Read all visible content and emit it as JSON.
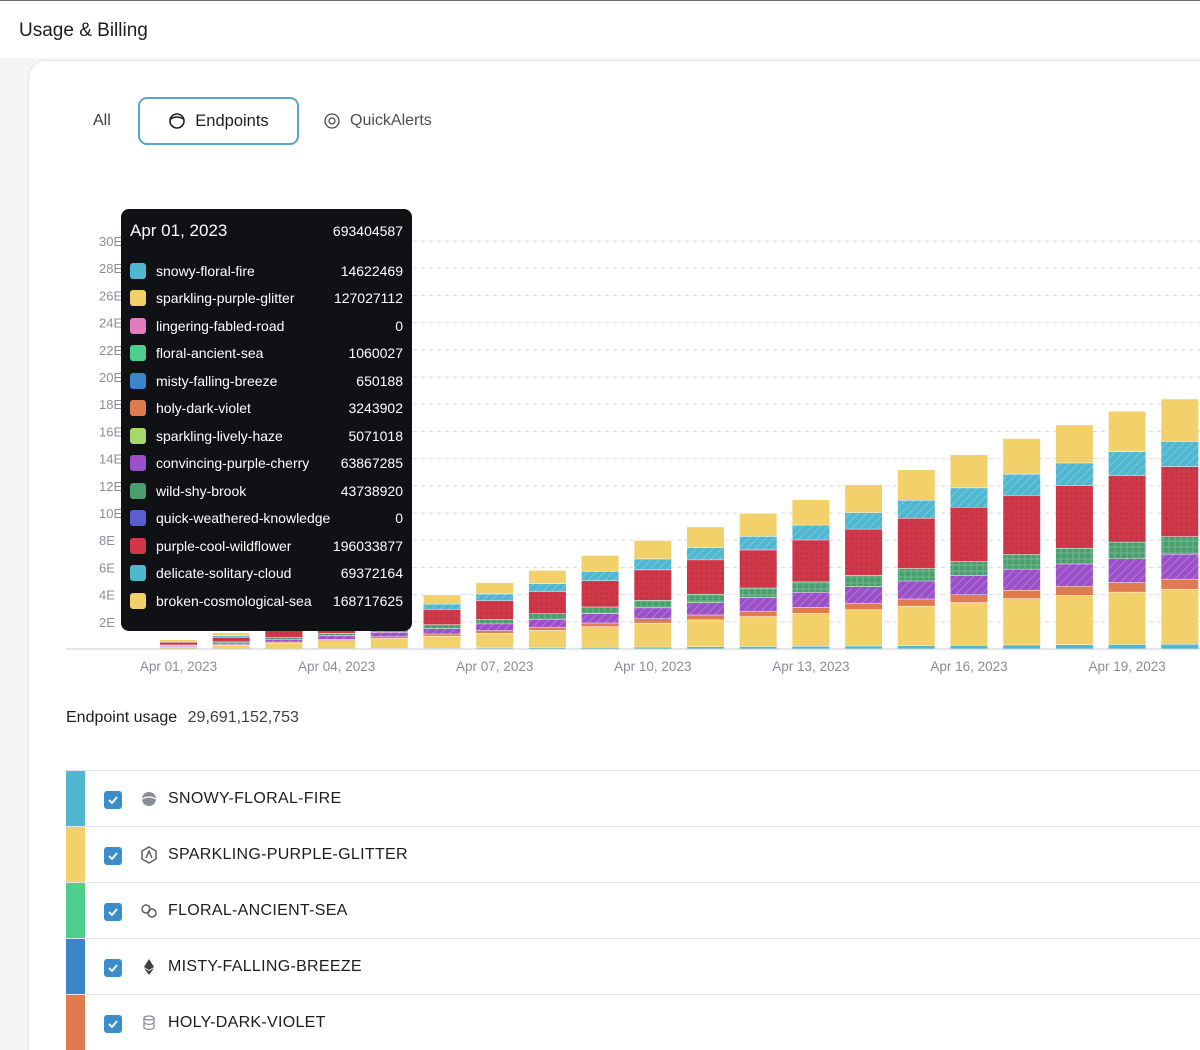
{
  "page": {
    "title": "Usage & Billing"
  },
  "tabs": [
    {
      "label": "All",
      "icon": ""
    },
    {
      "label": "Endpoints",
      "icon": "endpoints-icon",
      "active": true
    },
    {
      "label": "QuickAlerts",
      "icon": "quickalerts-icon"
    }
  ],
  "tooltip": {
    "date": "Apr 01, 2023",
    "total": "693404587",
    "rows": [
      {
        "name": "snowy-floral-fire",
        "value": "14622469",
        "color": "#4fb7cf"
      },
      {
        "name": "sparkling-purple-glitter",
        "value": "127027112",
        "color": "#f2d16b"
      },
      {
        "name": "lingering-fabled-road",
        "value": "0",
        "color": "#e07cc0"
      },
      {
        "name": "floral-ancient-sea",
        "value": "1060027",
        "color": "#4fcf8e"
      },
      {
        "name": "misty-falling-breeze",
        "value": "650188",
        "color": "#3a86c9"
      },
      {
        "name": "holy-dark-violet",
        "value": "3243902",
        "color": "#e07a4f"
      },
      {
        "name": "sparkling-lively-haze",
        "value": "5071018",
        "color": "#a6d86a"
      },
      {
        "name": "convincing-purple-cherry",
        "value": "63867285",
        "color": "#9b4fc9"
      },
      {
        "name": "wild-shy-brook",
        "value": "43738920",
        "color": "#4a9e6e"
      },
      {
        "name": "quick-weathered-knowledge",
        "value": "0",
        "color": "#5a5fd0"
      },
      {
        "name": "purple-cool-wildflower",
        "value": "196033877",
        "color": "#d0384a"
      },
      {
        "name": "delicate-solitary-cloud",
        "value": "69372164",
        "color": "#4fb7cf"
      },
      {
        "name": "broken-cosmological-sea",
        "value": "168717625",
        "color": "#f2d16b"
      }
    ]
  },
  "chart_data": {
    "type": "bar",
    "stacked": true,
    "x": [
      "Apr 01, 2023",
      "Apr 02, 2023",
      "Apr 03, 2023",
      "Apr 04, 2023",
      "Apr 05, 2023",
      "Apr 06, 2023",
      "Apr 07, 2023",
      "Apr 08, 2023",
      "Apr 09, 2023",
      "Apr 10, 2023",
      "Apr 11, 2023",
      "Apr 12, 2023",
      "Apr 13, 2023",
      "Apr 14, 2023",
      "Apr 15, 2023",
      "Apr 16, 2023",
      "Apr 17, 2023",
      "Apr 18, 2023",
      "Apr 19, 2023",
      "Apr 20, 2023"
    ],
    "x_tick_labels": [
      "Apr 01, 2023",
      "Apr 04, 2023",
      "Apr 07, 2023",
      "Apr 10, 2023",
      "Apr 13, 2023",
      "Apr 16, 2023",
      "Apr 19, 2023"
    ],
    "y_tick_labels": [
      "2E",
      "4E",
      "6E",
      "8E",
      "10E",
      "12E",
      "14E",
      "16E",
      "18E",
      "20E",
      "22E",
      "24E",
      "26E",
      "28E",
      "30E"
    ],
    "totals": [
      0.7,
      1.2,
      1.9,
      2.6,
      3.3,
      4.0,
      4.9,
      5.8,
      6.9,
      8.0,
      9.0,
      10.0,
      11.0,
      12.1,
      13.2,
      14.3,
      15.5,
      16.5,
      17.5,
      18.4
    ],
    "series_colors": {
      "cyan_bottom": "#4fb7cf",
      "yellow_bottom": "#f2d16b",
      "orange": "#e07a4f",
      "purple": "#9b4fc9",
      "green": "#4a9e6e",
      "red": "#d0384a",
      "cyan_top": "#4fb7cf",
      "yellow_top": "#f2d16b"
    },
    "series_shares": {
      "cyan_bottom": 0.02,
      "yellow_bottom": 0.22,
      "orange": 0.04,
      "purple": 0.1,
      "green": 0.07,
      "red": 0.28,
      "cyan_top": 0.1,
      "yellow_top": 0.17
    },
    "grid": "horizontal-dashed"
  },
  "usage": {
    "label": "Endpoint usage",
    "value": "29,691,152,753"
  },
  "endpoints": [
    {
      "name": "SNOWY-FLORAL-FIRE",
      "color": "#4fb7cf",
      "icon": "globe-icon"
    },
    {
      "name": "SPARKLING-PURPLE-GLITTER",
      "color": "#f2d16b",
      "icon": "arbitrum-icon"
    },
    {
      "name": "FLORAL-ANCIENT-SEA",
      "color": "#4fcf8e",
      "icon": "link-icon"
    },
    {
      "name": "MISTY-FALLING-BREEZE",
      "color": "#3a86c9",
      "icon": "ethereum-icon"
    },
    {
      "name": "HOLY-DARK-VIOLET",
      "color": "#e07a4f",
      "icon": "database-icon"
    }
  ]
}
